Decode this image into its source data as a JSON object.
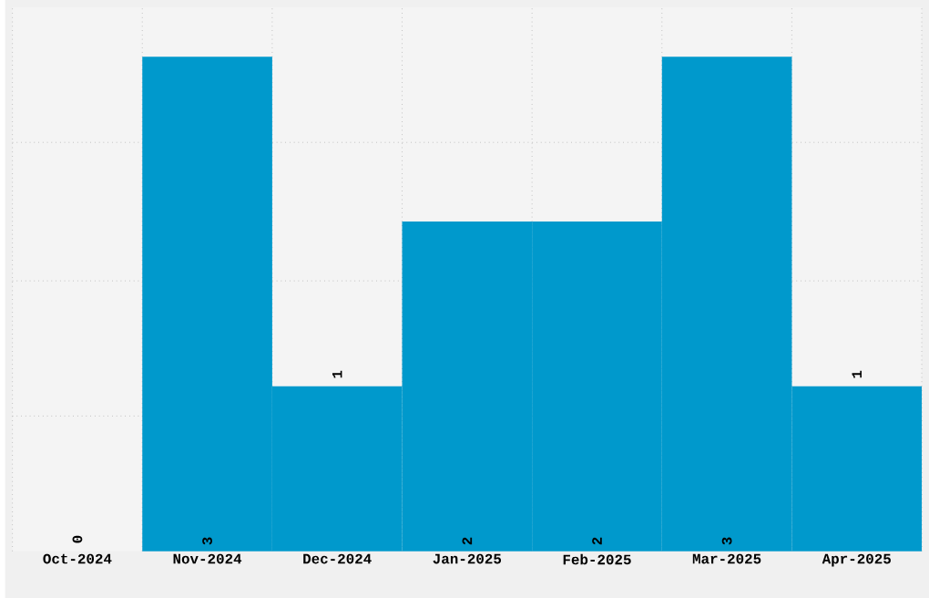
{
  "chart_data": {
    "type": "bar",
    "categories": [
      "Oct-2024",
      "Nov-2024",
      "Dec-2024",
      "Jan-2025",
      "Feb-2025",
      "Mar-2025",
      "Apr-2025"
    ],
    "values": [
      0,
      3,
      1,
      2,
      2,
      3,
      1
    ],
    "color": "#0099cc",
    "data_labels": true,
    "relative": false,
    "grid": true,
    "tick_labels": "x",
    "ylim": [
      0,
      3.3
    ],
    "yticks": [
      {
        "value": 0.82,
        "label": null
      },
      {
        "value": 1.64,
        "label": null
      },
      {
        "value": 2.48,
        "label": null
      }
    ]
  }
}
